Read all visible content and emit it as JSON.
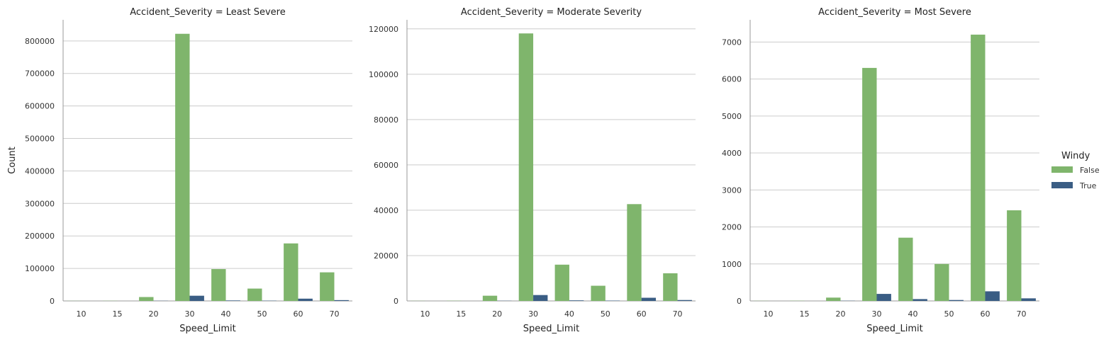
{
  "legend": {
    "title": "Windy",
    "entries": [
      {
        "label": "False",
        "color": "#7fb56c"
      },
      {
        "label": "True",
        "color": "#3a5d84"
      }
    ]
  },
  "chart_data": [
    {
      "type": "bar",
      "title": "Accident_Severity = Least Severe",
      "xlabel": "Speed_Limit",
      "ylabel": "Count",
      "categories": [
        "10",
        "15",
        "20",
        "30",
        "40",
        "50",
        "60",
        "70"
      ],
      "ylim": [
        0,
        865000
      ],
      "yticks": [
        0,
        100000,
        200000,
        300000,
        400000,
        500000,
        600000,
        700000,
        800000
      ],
      "series": [
        {
          "name": "False",
          "color": "#7fb56c",
          "values": [
            300,
            500,
            12000,
            822000,
            98000,
            38000,
            177000,
            88000
          ]
        },
        {
          "name": "True",
          "color": "#3a5d84",
          "values": [
            0,
            0,
            500,
            16000,
            1500,
            800,
            7000,
            2500
          ]
        }
      ]
    },
    {
      "type": "bar",
      "title": "Accident_Severity = Moderate Severity",
      "xlabel": "Speed_Limit",
      "ylabel": "",
      "categories": [
        "10",
        "15",
        "20",
        "30",
        "40",
        "50",
        "60",
        "70"
      ],
      "ylim": [
        0,
        124000
      ],
      "yticks": [
        0,
        20000,
        40000,
        60000,
        80000,
        100000,
        120000
      ],
      "series": [
        {
          "name": "False",
          "color": "#7fb56c",
          "values": [
            50,
            100,
            2300,
            118000,
            16000,
            6700,
            42700,
            12200
          ]
        },
        {
          "name": "True",
          "color": "#3a5d84",
          "values": [
            0,
            0,
            80,
            2600,
            250,
            150,
            1400,
            400
          ]
        }
      ]
    },
    {
      "type": "bar",
      "title": "Accident_Severity = Most Severe",
      "xlabel": "Speed_Limit",
      "ylabel": "",
      "categories": [
        "10",
        "15",
        "20",
        "30",
        "40",
        "50",
        "60",
        "70"
      ],
      "ylim": [
        0,
        7600
      ],
      "yticks": [
        0,
        1000,
        2000,
        3000,
        4000,
        5000,
        6000,
        7000
      ],
      "series": [
        {
          "name": "False",
          "color": "#7fb56c",
          "values": [
            3,
            5,
            90,
            6300,
            1710,
            1000,
            7200,
            2450
          ]
        },
        {
          "name": "True",
          "color": "#3a5d84",
          "values": [
            0,
            0,
            5,
            190,
            50,
            25,
            260,
            70
          ]
        }
      ]
    }
  ]
}
